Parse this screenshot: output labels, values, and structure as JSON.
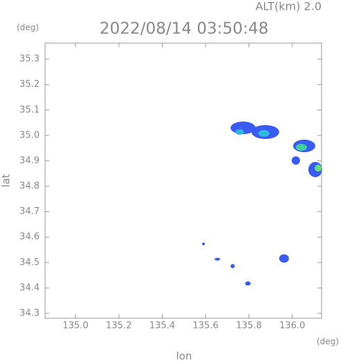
{
  "chart_data": {
    "type": "map",
    "title": "2022/08/14 03:50:48",
    "subtitle": "ALT(km) 2.0",
    "xlabel": "lon",
    "ylabel": "lat",
    "x_unit": "(deg)",
    "y_unit": "(deg)",
    "xlim": [
      134.86,
      136.135
    ],
    "ylim": [
      34.281,
      35.363
    ],
    "xticks": [
      {
        "value": 135,
        "label": "135.0"
      },
      135.2,
      135.4,
      135.6,
      135.8,
      {
        "value": 136,
        "label": "136.0"
      }
    ],
    "yticks": [
      34.3,
      34.4,
      34.5,
      34.6,
      34.7,
      34.8,
      34.9,
      {
        "value": 35,
        "label": "35.0"
      },
      35.1,
      35.2,
      35.3
    ]
  }
}
